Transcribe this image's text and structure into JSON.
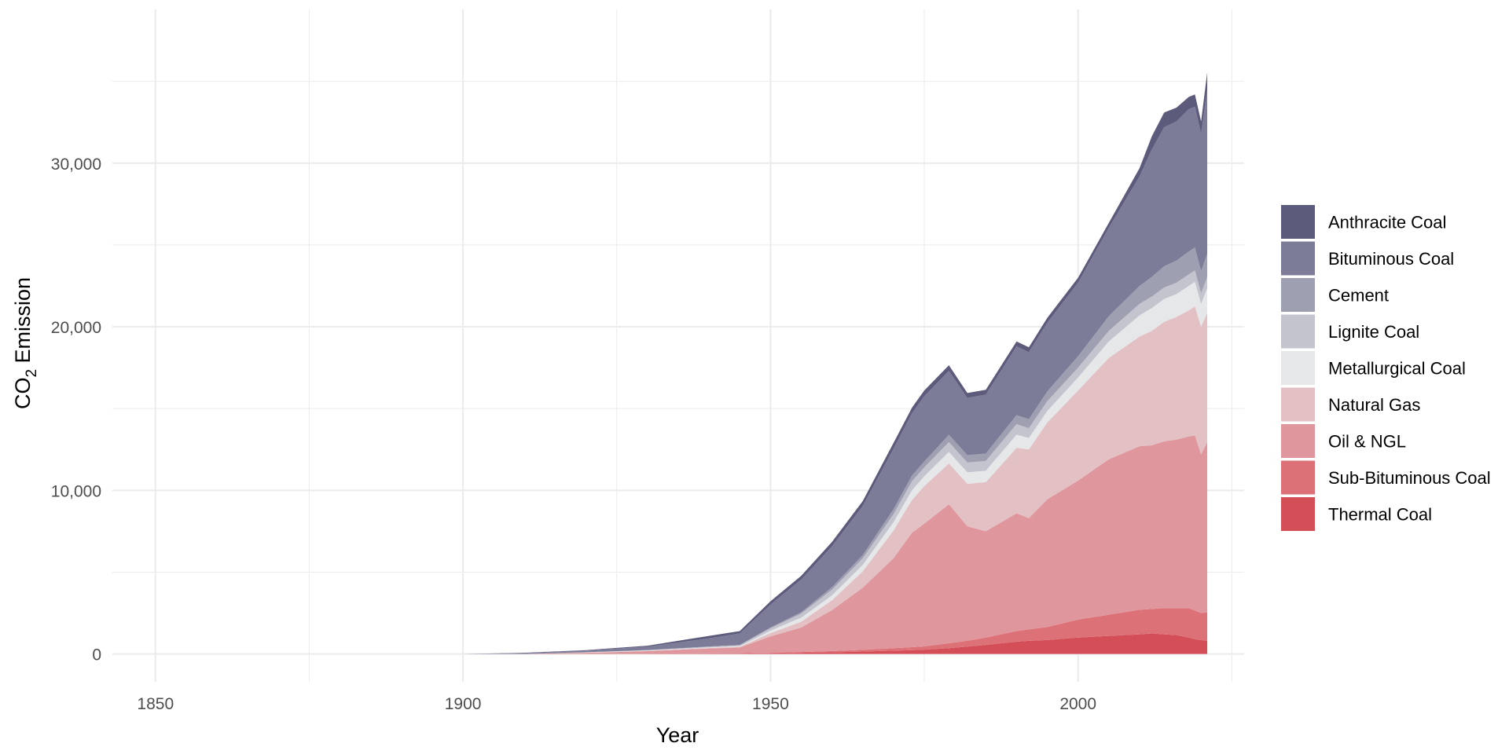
{
  "chart_data": {
    "type": "area",
    "stacked": true,
    "title": "",
    "xlabel": "Year",
    "ylabel": {
      "main": "CO",
      "subscript": "2",
      "rest": " Emission"
    },
    "xlim": [
      1843,
      2027
    ],
    "ylim": [
      -1700,
      39400
    ],
    "x_ticks": [
      1850,
      1900,
      1950,
      2000
    ],
    "x_tick_labels": [
      "1850",
      "1900",
      "1950",
      "2000"
    ],
    "y_ticks": [
      0,
      10000,
      20000,
      30000
    ],
    "y_tick_labels": [
      "0",
      "10,000",
      "20,000",
      "30,000"
    ],
    "grid": true,
    "legend": {
      "position": "right"
    },
    "x": [
      1900,
      1910,
      1920,
      1930,
      1940,
      1945,
      1950,
      1955,
      1960,
      1965,
      1970,
      1973,
      1975,
      1979,
      1982,
      1985,
      1990,
      1992,
      1995,
      2000,
      2005,
      2010,
      2012,
      2014,
      2016,
      2018,
      2019,
      2020,
      2021
    ],
    "series": [
      {
        "name": "Thermal Coal",
        "color": "#d44e57",
        "values": [
          0,
          0,
          5,
          10,
          20,
          25,
          40,
          70,
          100,
          150,
          200,
          230,
          260,
          350,
          450,
          550,
          750,
          800,
          850,
          1000,
          1100,
          1200,
          1250,
          1200,
          1150,
          1000,
          900,
          850,
          800
        ]
      },
      {
        "name": "Sub-Bituminous Coal",
        "color": "#dd7178",
        "values": [
          0,
          0,
          5,
          10,
          15,
          20,
          30,
          50,
          80,
          100,
          150,
          180,
          200,
          300,
          350,
          450,
          650,
          700,
          800,
          1100,
          1300,
          1500,
          1500,
          1600,
          1650,
          1800,
          1750,
          1650,
          1750
        ]
      },
      {
        "name": "Oil & NGL",
        "color": "#df969c",
        "values": [
          0,
          0,
          60,
          150,
          300,
          350,
          1000,
          1500,
          2500,
          3800,
          5500,
          7000,
          7500,
          8500,
          7000,
          6500,
          7200,
          6800,
          7800,
          8500,
          9500,
          10000,
          10000,
          10200,
          10300,
          10500,
          10700,
          9700,
          10400
        ]
      },
      {
        "name": "Natural Gas",
        "color": "#e2c0c4",
        "values": [
          0,
          0,
          10,
          20,
          30,
          40,
          200,
          350,
          600,
          1000,
          1700,
          2000,
          2300,
          2500,
          2600,
          3000,
          4000,
          4200,
          4700,
          5500,
          6200,
          6700,
          7000,
          7300,
          7500,
          7700,
          7900,
          7800,
          7900
        ]
      },
      {
        "name": "Metallurgical Coal",
        "color": "#e6e7e9",
        "values": [
          0,
          0,
          10,
          20,
          30,
          40,
          150,
          250,
          300,
          400,
          500,
          600,
          600,
          700,
          700,
          700,
          800,
          700,
          700,
          800,
          1000,
          1300,
          1400,
          1400,
          1400,
          1500,
          1500,
          1400,
          1500
        ]
      },
      {
        "name": "Lignite Coal",
        "color": "#c3c4ce",
        "values": [
          0,
          0,
          10,
          20,
          40,
          50,
          150,
          250,
          350,
          400,
          500,
          550,
          550,
          600,
          600,
          600,
          650,
          600,
          600,
          600,
          650,
          700,
          700,
          700,
          700,
          700,
          700,
          650,
          700
        ]
      },
      {
        "name": "Cement",
        "color": "#9e9fb0",
        "values": [
          0,
          0,
          5,
          10,
          20,
          25,
          50,
          80,
          150,
          200,
          300,
          350,
          350,
          450,
          450,
          450,
          550,
          550,
          600,
          700,
          900,
          1100,
          1200,
          1300,
          1350,
          1400,
          1400,
          1350,
          1400
        ]
      },
      {
        "name": "Bituminous Coal",
        "color": "#7d7c98",
        "values": [
          0,
          50,
          100,
          200,
          500,
          700,
          1400,
          2000,
          2500,
          3000,
          3700,
          3800,
          4000,
          3900,
          3500,
          3600,
          4200,
          4100,
          4200,
          4500,
          5400,
          6700,
          7800,
          8500,
          8500,
          8700,
          8600,
          8400,
          10000
        ]
      },
      {
        "name": "Anthracite Coal",
        "color": "#5d5b7c",
        "values": [
          0,
          20,
          30,
          60,
          150,
          150,
          200,
          230,
          270,
          300,
          350,
          350,
          350,
          350,
          300,
          300,
          300,
          300,
          300,
          300,
          300,
          500,
          800,
          900,
          850,
          750,
          750,
          750,
          1100
        ]
      }
    ]
  }
}
